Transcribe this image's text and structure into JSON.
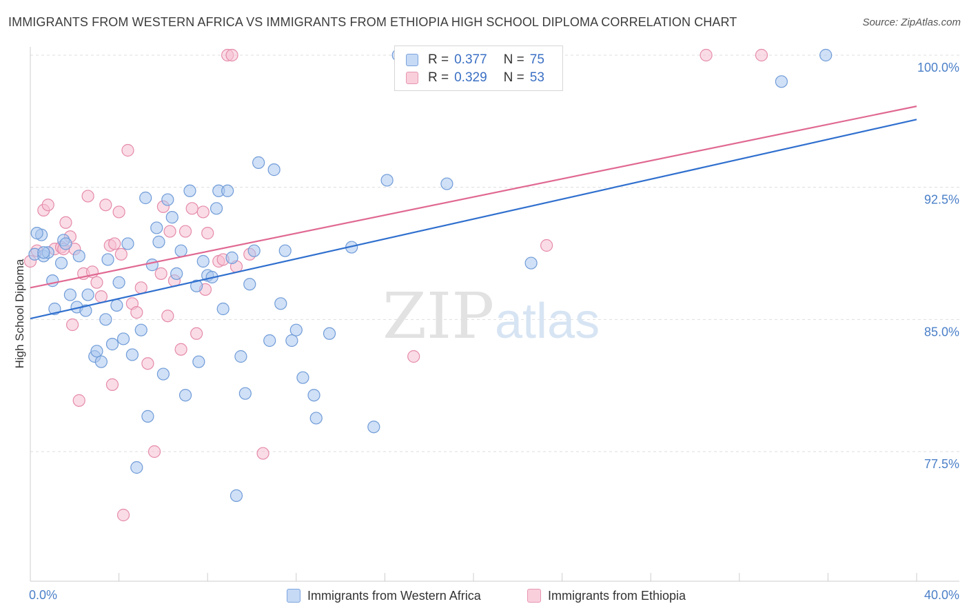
{
  "title": "IMMIGRANTS FROM WESTERN AFRICA VS IMMIGRANTS FROM ETHIOPIA HIGH SCHOOL DIPLOMA CORRELATION CHART",
  "source": "Source: ZipAtlas.com",
  "watermark": {
    "zip": "ZIP",
    "atlas": "atlas"
  },
  "legend": {
    "series1": {
      "r_label": "R =",
      "r_value": "0.377",
      "n_label": "N =",
      "n_value": "75"
    },
    "series2": {
      "r_label": "R =",
      "r_value": "0.329",
      "n_label": "N =",
      "n_value": "53"
    }
  },
  "colors": {
    "blue_fill": "#a9c6ee",
    "blue_stroke": "#6f9bd8",
    "blue_line": "#2f6fce",
    "pink_fill": "#f6bfd1",
    "pink_stroke": "#e58aa9",
    "pink_line": "#e06892",
    "grid": "#dddddd",
    "tick_label": "#4a7fc8"
  },
  "chart_data": {
    "type": "scatter",
    "title": "IMMIGRANTS FROM WESTERN AFRICA VS IMMIGRANTS FROM ETHIOPIA HIGH SCHOOL DIPLOMA CORRELATION CHART",
    "xlabel": "",
    "ylabel": "High School Diploma",
    "xlim": [
      0,
      40
    ],
    "ylim": [
      70,
      100.7
    ],
    "x_tick_labels": [
      "0.0%",
      "40.0%"
    ],
    "y_ticks": [
      {
        "value": 100,
        "label": "100.0%"
      },
      {
        "value": 92.5,
        "label": "92.5%"
      },
      {
        "value": 85,
        "label": "85.0%"
      },
      {
        "value": 77.5,
        "label": "77.5%"
      }
    ],
    "series": [
      {
        "name": "Immigrants from Western Africa",
        "r": 0.377,
        "n": 75,
        "trend": {
          "x": [
            0,
            40
          ],
          "y": [
            85.05,
            96.35
          ]
        },
        "points": [
          [
            0.2,
            88.7
          ],
          [
            0.5,
            89.8
          ],
          [
            0.6,
            88.6
          ],
          [
            0.8,
            88.8
          ],
          [
            1.0,
            87.2
          ],
          [
            1.1,
            85.6
          ],
          [
            1.4,
            88.2
          ],
          [
            1.5,
            89.5
          ],
          [
            1.6,
            89.3
          ],
          [
            1.8,
            86.4
          ],
          [
            2.1,
            85.7
          ],
          [
            2.2,
            88.6
          ],
          [
            2.5,
            85.5
          ],
          [
            2.6,
            86.4
          ],
          [
            2.9,
            82.9
          ],
          [
            3.0,
            83.2
          ],
          [
            3.2,
            82.6
          ],
          [
            3.4,
            85.0
          ],
          [
            3.5,
            88.4
          ],
          [
            3.7,
            83.6
          ],
          [
            3.9,
            85.8
          ],
          [
            4.0,
            87.1
          ],
          [
            4.2,
            83.9
          ],
          [
            4.4,
            89.3
          ],
          [
            4.6,
            83.0
          ],
          [
            4.8,
            76.6
          ],
          [
            5.0,
            84.4
          ],
          [
            5.2,
            91.9
          ],
          [
            5.3,
            79.5
          ],
          [
            5.5,
            88.1
          ],
          [
            5.7,
            90.2
          ],
          [
            5.8,
            89.4
          ],
          [
            6.0,
            81.9
          ],
          [
            6.2,
            91.8
          ],
          [
            6.4,
            90.8
          ],
          [
            6.6,
            87.6
          ],
          [
            6.8,
            88.9
          ],
          [
            7.0,
            80.7
          ],
          [
            7.2,
            92.3
          ],
          [
            7.5,
            86.9
          ],
          [
            7.6,
            82.6
          ],
          [
            7.8,
            88.3
          ],
          [
            8.0,
            87.5
          ],
          [
            8.2,
            87.4
          ],
          [
            8.4,
            91.3
          ],
          [
            8.5,
            92.3
          ],
          [
            8.7,
            85.6
          ],
          [
            8.9,
            92.3
          ],
          [
            9.1,
            88.5
          ],
          [
            9.3,
            75.0
          ],
          [
            9.5,
            82.9
          ],
          [
            9.7,
            80.8
          ],
          [
            9.9,
            87.0
          ],
          [
            10.1,
            88.9
          ],
          [
            10.3,
            93.9
          ],
          [
            11.0,
            93.5
          ],
          [
            10.8,
            83.8
          ],
          [
            11.3,
            85.9
          ],
          [
            11.5,
            88.9
          ],
          [
            11.8,
            83.8
          ],
          [
            12.0,
            84.4
          ],
          [
            12.3,
            81.7
          ],
          [
            12.8,
            80.7
          ],
          [
            12.9,
            79.4
          ],
          [
            13.5,
            84.2
          ],
          [
            14.5,
            89.1
          ],
          [
            15.5,
            78.9
          ],
          [
            16.1,
            92.9
          ],
          [
            16.6,
            100.0
          ],
          [
            18.8,
            92.7
          ],
          [
            22.6,
            88.2
          ],
          [
            33.9,
            98.5
          ],
          [
            35.9,
            100.0
          ],
          [
            0.3,
            89.9
          ],
          [
            0.6,
            88.8
          ]
        ]
      },
      {
        "name": "Immigrants from Ethiopia",
        "r": 0.329,
        "n": 53,
        "trend": {
          "x": [
            0,
            40
          ],
          "y": [
            86.8,
            97.1
          ]
        },
        "points": [
          [
            0.0,
            88.3
          ],
          [
            0.3,
            88.9
          ],
          [
            0.6,
            91.2
          ],
          [
            0.8,
            91.5
          ],
          [
            1.1,
            89.0
          ],
          [
            1.4,
            89.1
          ],
          [
            1.6,
            90.5
          ],
          [
            1.8,
            89.7
          ],
          [
            1.9,
            84.7
          ],
          [
            2.0,
            89.0
          ],
          [
            2.2,
            80.4
          ],
          [
            2.4,
            87.6
          ],
          [
            2.6,
            92.0
          ],
          [
            2.8,
            87.7
          ],
          [
            3.0,
            87.1
          ],
          [
            3.2,
            86.3
          ],
          [
            3.4,
            91.5
          ],
          [
            3.6,
            89.2
          ],
          [
            3.7,
            81.3
          ],
          [
            3.8,
            89.3
          ],
          [
            4.0,
            91.1
          ],
          [
            4.1,
            88.7
          ],
          [
            4.2,
            73.9
          ],
          [
            4.4,
            94.6
          ],
          [
            4.6,
            85.9
          ],
          [
            4.8,
            85.4
          ],
          [
            5.0,
            86.8
          ],
          [
            5.3,
            82.5
          ],
          [
            5.6,
            77.5
          ],
          [
            5.9,
            87.6
          ],
          [
            6.0,
            91.4
          ],
          [
            6.2,
            85.2
          ],
          [
            6.3,
            90.0
          ],
          [
            6.5,
            87.2
          ],
          [
            6.8,
            83.3
          ],
          [
            7.0,
            90.0
          ],
          [
            7.3,
            91.3
          ],
          [
            7.5,
            84.2
          ],
          [
            7.8,
            91.1
          ],
          [
            7.9,
            86.7
          ],
          [
            8.0,
            89.9
          ],
          [
            8.5,
            88.3
          ],
          [
            8.7,
            88.4
          ],
          [
            8.9,
            100.0
          ],
          [
            9.1,
            100.0
          ],
          [
            9.3,
            88.0
          ],
          [
            9.9,
            88.7
          ],
          [
            10.5,
            77.4
          ],
          [
            17.3,
            82.9
          ],
          [
            23.3,
            89.2
          ],
          [
            30.5,
            100.0
          ],
          [
            33.0,
            100.0
          ],
          [
            1.5,
            89.0
          ]
        ]
      }
    ]
  },
  "bottom_legend": [
    "Immigrants from Western Africa",
    "Immigrants from Ethiopia"
  ]
}
